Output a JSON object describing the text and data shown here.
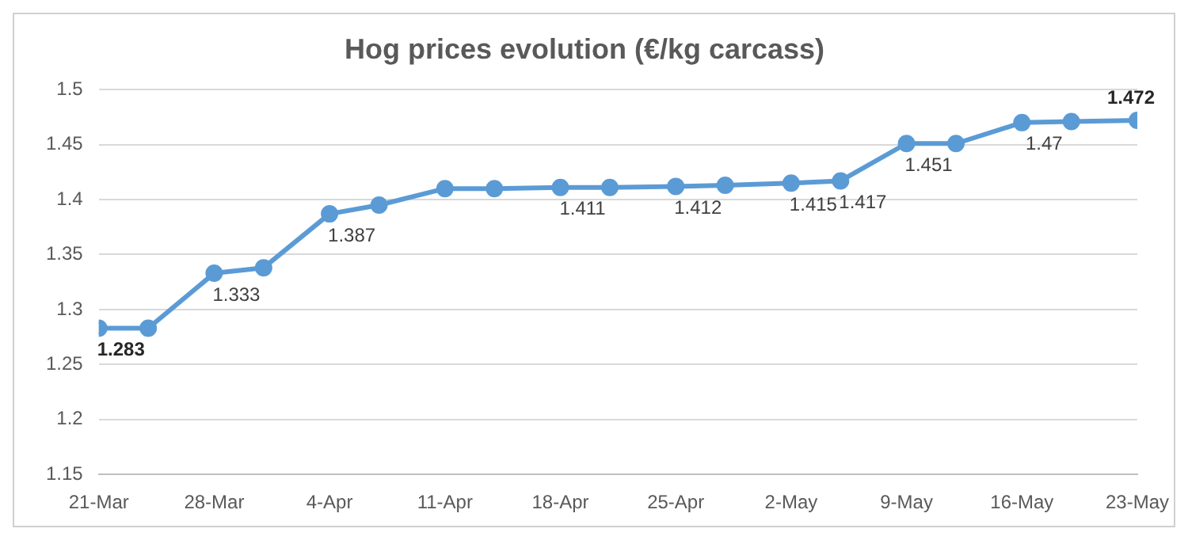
{
  "chart_data": {
    "type": "line",
    "title": "Hog prices evolution (€/kg carcass)",
    "x": [
      "--03-21",
      "--03-24",
      "--03-28",
      "--03-31",
      "--04-04",
      "--04-07",
      "--04-11",
      "--04-14",
      "--04-18",
      "--04-21",
      "--04-25",
      "--04-28",
      "--05-02",
      "--05-05",
      "--05-09",
      "--05-12",
      "--05-16",
      "--05-19",
      "--05-23"
    ],
    "series": [
      {
        "color": "#5b9bd5",
        "values": [
          1.283,
          1.283,
          1.333,
          1.338,
          1.387,
          1.395,
          1.41,
          1.41,
          1.411,
          1.411,
          1.412,
          1.413,
          1.415,
          1.417,
          1.451,
          1.451,
          1.47,
          1.471,
          1.472
        ],
        "value_labels": [
          "1.283",
          null,
          "1.333",
          null,
          "1.387",
          null,
          null,
          null,
          "1.411",
          null,
          "1.412",
          null,
          "1.415",
          "1.417",
          "1.451",
          null,
          "1.47",
          null,
          "1.472"
        ]
      }
    ],
    "xlim": [
      "--03-21",
      "--05-23"
    ],
    "xticks": [
      {
        "value": "--03-21",
        "label": "21-Mar"
      },
      {
        "value": "--03-28",
        "label": "28-Mar"
      },
      {
        "value": "--04-04",
        "label": "4-Apr"
      },
      {
        "value": "--04-11",
        "label": "11-Apr"
      },
      {
        "value": "--04-18",
        "label": "18-Apr"
      },
      {
        "value": "--04-25",
        "label": "25-Apr"
      },
      {
        "value": "--05-02",
        "label": "2-May"
      },
      {
        "value": "--05-09",
        "label": "9-May"
      },
      {
        "value": "--05-16",
        "label": "16-May"
      },
      {
        "value": "--05-23",
        "label": "23-May"
      }
    ],
    "ylim": [
      1.15,
      1.5
    ],
    "yticks": [
      1.15,
      1.2,
      1.25,
      1.3,
      1.35,
      1.4,
      1.45,
      1.5
    ],
    "grid": "y",
    "legend": false,
    "marker": "circle",
    "line_style": "solid"
  }
}
